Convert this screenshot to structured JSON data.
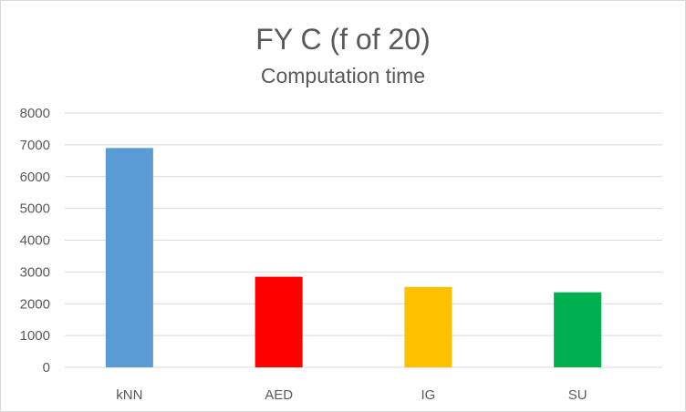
{
  "chart_data": {
    "type": "bar",
    "title": "FY C (f of 20)",
    "subtitle": "Computation time",
    "categories": [
      "kNN",
      "AED",
      "IG",
      "SU"
    ],
    "values": [
      6900,
      2850,
      2530,
      2360
    ],
    "colors": [
      "#5b9bd5",
      "#ff0000",
      "#ffc000",
      "#00b050"
    ],
    "ylim": [
      0,
      8000
    ],
    "yticks": [
      0,
      1000,
      2000,
      3000,
      4000,
      5000,
      6000,
      7000,
      8000
    ],
    "grid": true,
    "legend": "none",
    "xlabel": "",
    "ylabel": ""
  }
}
